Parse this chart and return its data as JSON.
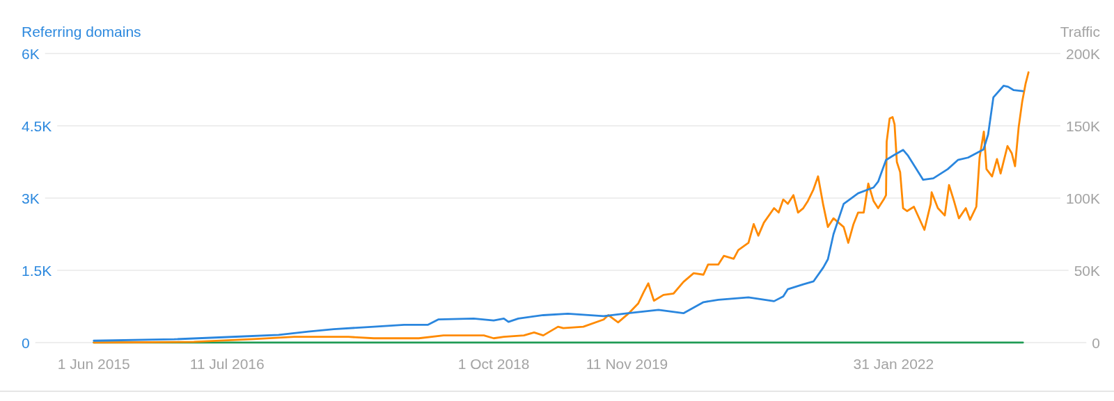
{
  "chart_data": {
    "type": "line",
    "ylabel": "Referring domains",
    "y2label": "Traffic",
    "xlim": [
      "2014-10-24",
      "2023-10-22"
    ],
    "xticks": [
      {
        "value": "2015-06-01",
        "label": "1 Jun 2015"
      },
      {
        "value": "2016-07-11",
        "label": "11 Jul 2016"
      },
      {
        "value": "2018-10-01",
        "label": "1 Oct 2018"
      },
      {
        "value": "2019-11-11",
        "label": "11 Nov 2019"
      },
      {
        "value": "2022-01-31",
        "label": "31 Jan 2022"
      }
    ],
    "ylim": [
      0,
      6000
    ],
    "yticks": [
      0,
      {
        "value": 1500,
        "label": "1.5K"
      },
      {
        "value": 3000,
        "label": "3K"
      },
      {
        "value": 4500,
        "label": "4.5K"
      },
      {
        "value": 6000,
        "label": "6K"
      }
    ],
    "y2lim": [
      0,
      200000
    ],
    "y2ticks": [
      0,
      {
        "value": 50000,
        "label": "50K"
      },
      {
        "value": 100000,
        "label": "100K"
      },
      {
        "value": 150000,
        "label": "150K"
      },
      {
        "value": 200000,
        "label": "200K"
      }
    ],
    "grid": "y",
    "series": [
      {
        "color": "#2a86de",
        "x": [
          "2015-06-01",
          "2016-02-01",
          "2016-09-01",
          "2016-12-15",
          "2017-03-15",
          "2017-06-01",
          "2017-10-01",
          "2018-01-01",
          "2018-03-15",
          "2018-04-15",
          "2018-08-01",
          "2018-10-01",
          "2018-11-01",
          "2018-11-15",
          "2018-12-15",
          "2019-03-01",
          "2019-05-15",
          "2019-09-01",
          "2019-11-15",
          "2020-02-15",
          "2020-05-01",
          "2020-07-01",
          "2020-08-15",
          "2020-11-15",
          "2021-02-01",
          "2021-03-01",
          "2021-03-15",
          "2021-05-01",
          "2021-06-01",
          "2021-07-01",
          "2021-07-15",
          "2021-08-01",
          "2021-09-01",
          "2021-10-15",
          "2021-12-01",
          "2021-12-15",
          "2022-01-08",
          "2022-02-01",
          "2022-03-01",
          "2022-03-15",
          "2022-05-01",
          "2022-06-01",
          "2022-07-15",
          "2022-08-15",
          "2022-09-15",
          "2022-11-01",
          "2022-11-15",
          "2022-12-01",
          "2023-01-01",
          "2023-01-15",
          "2023-02-01",
          "2023-03-01"
        ],
        "values": [
          40,
          70,
          130,
          160,
          230,
          280,
          330,
          370,
          370,
          480,
          500,
          460,
          500,
          430,
          500,
          570,
          600,
          550,
          610,
          680,
          610,
          840,
          890,
          940,
          860,
          960,
          1110,
          1210,
          1270,
          1560,
          1730,
          2250,
          2880,
          3100,
          3220,
          3340,
          3790,
          3890,
          4000,
          3890,
          3380,
          3410,
          3600,
          3790,
          3840,
          4010,
          4320,
          5090,
          5330,
          5310,
          5240,
          5220
        ]
      },
      {
        "color": "#ff8a00",
        "axis": "y2",
        "x": [
          "2015-06-01",
          "2016-04-01",
          "2016-10-01",
          "2017-02-01",
          "2017-07-15",
          "2017-10-01",
          "2017-12-01",
          "2018-02-15",
          "2018-05-01",
          "2018-09-01",
          "2018-10-01",
          "2018-11-01",
          "2019-01-01",
          "2019-02-01",
          "2019-03-01",
          "2019-04-15",
          "2019-05-01",
          "2019-07-01",
          "2019-09-01",
          "2019-09-15",
          "2019-10-15",
          "2019-11-15",
          "2019-12-15",
          "2020-01-01",
          "2020-01-15",
          "2020-02-01",
          "2020-03-01",
          "2020-04-01",
          "2020-05-01",
          "2020-06-01",
          "2020-07-01",
          "2020-07-15",
          "2020-08-15",
          "2020-09-01",
          "2020-10-01",
          "2020-10-15",
          "2020-11-15",
          "2020-12-01",
          "2020-12-15",
          "2021-01-01",
          "2021-02-01",
          "2021-02-15",
          "2021-03-01",
          "2021-03-15",
          "2021-04-01",
          "2021-04-15",
          "2021-05-01",
          "2021-05-15",
          "2021-06-01",
          "2021-06-15",
          "2021-07-01",
          "2021-07-15",
          "2021-08-01",
          "2021-09-01",
          "2021-09-15",
          "2021-10-01",
          "2021-10-15",
          "2021-11-01",
          "2021-11-15",
          "2021-12-01",
          "2021-12-15",
          "2022-01-01",
          "2022-01-08",
          "2022-01-10",
          "2022-01-19",
          "2022-01-28",
          "2022-02-03",
          "2022-02-10",
          "2022-02-20",
          "2022-03-01",
          "2022-03-13",
          "2022-04-03",
          "2022-05-05",
          "2022-05-24",
          "2022-05-27",
          "2022-06-15",
          "2022-07-06",
          "2022-07-19",
          "2022-08-03",
          "2022-08-18",
          "2022-09-08",
          "2022-09-21",
          "2022-10-10",
          "2022-10-20",
          "2022-11-02",
          "2022-11-10",
          "2022-11-27",
          "2022-12-12",
          "2022-12-23",
          "2023-01-13",
          "2023-01-26",
          "2023-02-05",
          "2023-02-16",
          "2023-02-27",
          "2023-03-09",
          "2023-03-18"
        ],
        "values": [
          0,
          500,
          2500,
          4000,
          4000,
          3000,
          3000,
          3000,
          5000,
          5000,
          3000,
          4000,
          5000,
          7000,
          5000,
          11000,
          10000,
          11000,
          16000,
          19000,
          14000,
          20000,
          27000,
          35000,
          41000,
          29000,
          33000,
          34000,
          42000,
          48000,
          47000,
          54000,
          54000,
          60000,
          58000,
          64000,
          69000,
          82000,
          74000,
          83000,
          93000,
          90000,
          99000,
          96000,
          102000,
          90000,
          93000,
          98000,
          106000,
          115000,
          95000,
          80000,
          86000,
          80000,
          69000,
          82000,
          90000,
          90000,
          110000,
          98000,
          93000,
          99000,
          102000,
          139000,
          155000,
          156000,
          151000,
          125000,
          118000,
          93000,
          91000,
          94000,
          78000,
          96000,
          104000,
          93000,
          88000,
          109000,
          98000,
          86000,
          93000,
          85000,
          94000,
          128000,
          146000,
          120000,
          115000,
          127000,
          117000,
          136000,
          131000,
          122000,
          149000,
          167000,
          179000,
          187000
        ]
      },
      {
        "color": "#1f9b54",
        "axis": "y2",
        "x": [
          "2015-06-01",
          "2023-03-01"
        ],
        "values": [
          0,
          0
        ]
      }
    ]
  }
}
